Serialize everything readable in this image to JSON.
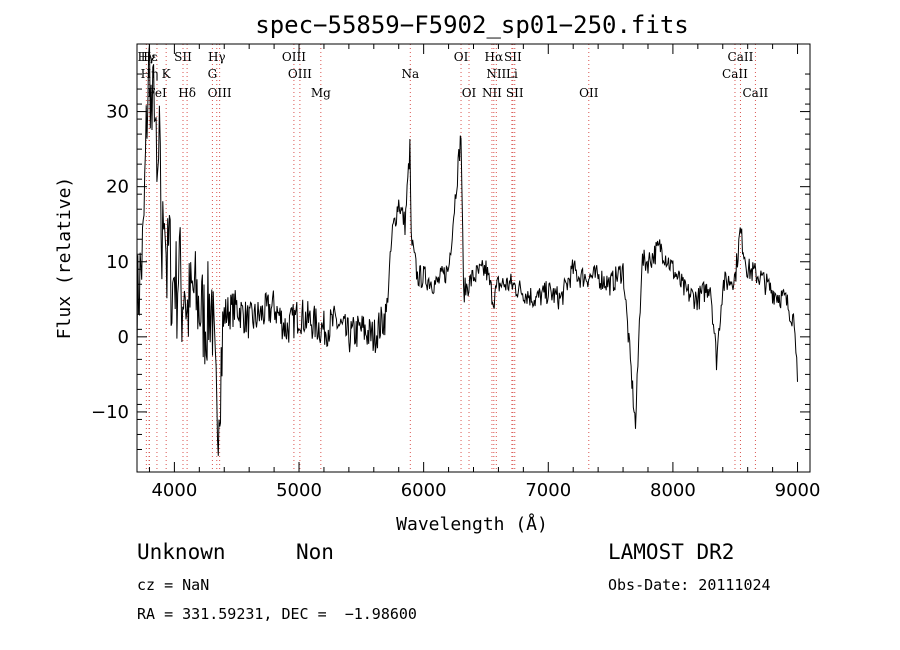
{
  "info": {
    "class": "Unknown",
    "subclass": "Non",
    "survey": "LAMOST DR2",
    "cz": "cz = NaN",
    "obs_date": "Obs-Date: 20111024",
    "radec": "RA = 331.59231, DEC =  −1.98600"
  },
  "chart_data": {
    "type": "line",
    "title": "spec−55859−F5902_sp01−250.fits",
    "xlabel": "Wavelength (Å)",
    "ylabel": "Flux (relative)",
    "xlim": [
      3700,
      9100
    ],
    "ylim": [
      -18,
      39
    ],
    "xticks": [
      4000,
      5000,
      6000,
      7000,
      8000,
      9000
    ],
    "xtick_labels": [
      "4000",
      "5000",
      "6000",
      "7000",
      "8000",
      "9000"
    ],
    "yticks": [
      -10,
      0,
      10,
      20,
      30
    ],
    "ytick_labels": [
      "−10",
      "0",
      "10",
      "20",
      "30"
    ],
    "series_color": "#000000",
    "line_marker_color": "#d9534f",
    "spectrum_x": [
      3700,
      3750,
      3780,
      3800,
      3820,
      3840,
      3860,
      3880,
      3900,
      3920,
      3940,
      3960,
      3980,
      4000,
      4020,
      4040,
      4060,
      4080,
      4100,
      4150,
      4200,
      4250,
      4300,
      4340,
      4400,
      4500,
      4600,
      4700,
      4800,
      4900,
      5000,
      5100,
      5200,
      5300,
      5400,
      5500,
      5600,
      5700,
      5750,
      5800,
      5850,
      5890,
      5900,
      5950,
      6000,
      6100,
      6200,
      6300,
      6320,
      6400,
      6500,
      6560,
      6600,
      6700,
      6800,
      6900,
      7000,
      7100,
      7200,
      7250,
      7300,
      7400,
      7500,
      7600,
      7700,
      7750,
      7800,
      7900,
      8000,
      8100,
      8200,
      8300,
      8350,
      8400,
      8500,
      8540,
      8600,
      8700,
      8800,
      8900,
      8980,
      9000
    ],
    "spectrum_y": [
      4,
      12,
      30,
      37,
      28,
      34,
      18,
      25,
      10,
      20,
      8,
      13,
      5,
      9,
      6,
      11,
      4,
      8,
      3,
      6,
      4,
      2,
      5,
      -12,
      3,
      4,
      2,
      3,
      4,
      1,
      3,
      2,
      1,
      2,
      0,
      1,
      0,
      3,
      14,
      18,
      15,
      25,
      13,
      8,
      8,
      7,
      9,
      27,
      6,
      8,
      9,
      5,
      7,
      7,
      6,
      5,
      6,
      5,
      9,
      8,
      8,
      8,
      7,
      9,
      -12,
      10,
      10,
      12,
      9,
      6,
      5,
      7,
      -3,
      7,
      8,
      14,
      9,
      8,
      6,
      5,
      2,
      -6
    ],
    "lines": [
      {
        "label": "Hγ",
        "wavelength": 3775,
        "row": 1
      },
      {
        "label": "Hε",
        "wavelength": 3797,
        "row": 1
      },
      {
        "label": "Hη",
        "wavelength": 3800,
        "row": 2
      },
      {
        "label": "K",
        "wavelength": 3934,
        "row": 2
      },
      {
        "label": "FeI",
        "wavelength": 3860,
        "row": 3
      },
      {
        "label": "SII",
        "wavelength": 4069,
        "row": 1
      },
      {
        "label": "Hδ",
        "wavelength": 4102,
        "row": 3
      },
      {
        "label": "Hγ",
        "wavelength": 4340,
        "row": 1
      },
      {
        "label": "G",
        "wavelength": 4305,
        "row": 2
      },
      {
        "label": "OIII",
        "wavelength": 4363,
        "row": 3
      },
      {
        "label": "OIII",
        "wavelength": 4959,
        "row": 1
      },
      {
        "label": "OIII",
        "wavelength": 5007,
        "row": 2
      },
      {
        "label": "Mg",
        "wavelength": 5175,
        "row": 3
      },
      {
        "label": "Na",
        "wavelength": 5893,
        "row": 2
      },
      {
        "label": "OI",
        "wavelength": 6300,
        "row": 1
      },
      {
        "label": "OI",
        "wavelength": 6364,
        "row": 3
      },
      {
        "label": "Hα",
        "wavelength": 6563,
        "row": 1
      },
      {
        "label": "SII",
        "wavelength": 6716,
        "row": 1
      },
      {
        "label": "NII",
        "wavelength": 6583,
        "row": 2
      },
      {
        "label": "Li",
        "wavelength": 6708,
        "row": 2
      },
      {
        "label": "NII",
        "wavelength": 6548,
        "row": 3
      },
      {
        "label": "SII",
        "wavelength": 6731,
        "row": 3
      },
      {
        "label": "OII",
        "wavelength": 7325,
        "row": 3
      },
      {
        "label": "CaII",
        "wavelength": 8542,
        "row": 1
      },
      {
        "label": "CaII",
        "wavelength": 8498,
        "row": 2
      },
      {
        "label": "CaII",
        "wavelength": 8662,
        "row": 3
      }
    ]
  }
}
